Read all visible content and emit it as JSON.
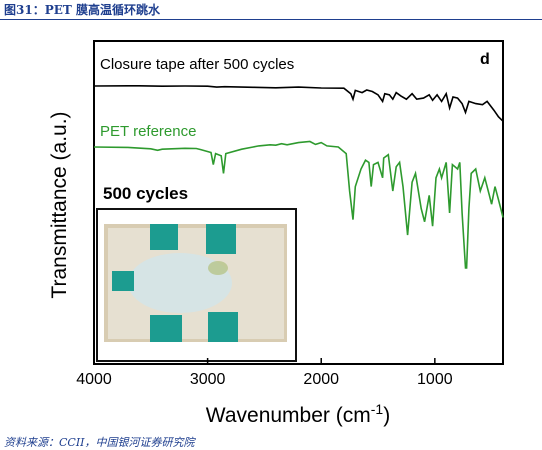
{
  "figure": {
    "title": "图31：PET 膜高温循环跳水",
    "source": "资料来源：CCII，中国银河证券研究院"
  },
  "chart_data": {
    "type": "line",
    "xlabel": "Wavenumber (cm",
    "xlabel_sup": "-1",
    "xlabel_end": ")",
    "ylabel": "Transmittance (a.u.)",
    "panel_label": "d",
    "xlim": [
      4000,
      400
    ],
    "x_reversed": true,
    "xticks": [
      4000,
      3000,
      2000,
      1000
    ],
    "xtick_labels": [
      "4000",
      "3000",
      "2000",
      "1000"
    ],
    "inset_title": "500 cycles",
    "series": [
      {
        "name": "Closure tape after 500 cycles",
        "color": "#000000",
        "points": [
          [
            4000,
            0.0
          ],
          [
            3600,
            -0.1
          ],
          [
            3400,
            0.1
          ],
          [
            3200,
            0.0
          ],
          [
            3000,
            0.1
          ],
          [
            2920,
            0.5
          ],
          [
            2850,
            0.3
          ],
          [
            2600,
            0.6
          ],
          [
            2400,
            0.8
          ],
          [
            2200,
            0.5
          ],
          [
            2000,
            0.9
          ],
          [
            1800,
            1.0
          ],
          [
            1740,
            3.5
          ],
          [
            1720,
            6.0
          ],
          [
            1700,
            2.0
          ],
          [
            1640,
            3.0
          ],
          [
            1600,
            1.8
          ],
          [
            1550,
            2.5
          ],
          [
            1500,
            4.0
          ],
          [
            1460,
            7.0
          ],
          [
            1440,
            3.5
          ],
          [
            1400,
            4.0
          ],
          [
            1370,
            6.0
          ],
          [
            1340,
            3.0
          ],
          [
            1300,
            4.5
          ],
          [
            1250,
            6.0
          ],
          [
            1200,
            3.5
          ],
          [
            1160,
            6.0
          ],
          [
            1100,
            5.5
          ],
          [
            1050,
            4.0
          ],
          [
            1020,
            6.5
          ],
          [
            980,
            4.0
          ],
          [
            940,
            7.0
          ],
          [
            900,
            3.5
          ],
          [
            870,
            10.0
          ],
          [
            840,
            5.0
          ],
          [
            800,
            5.5
          ],
          [
            760,
            8.0
          ],
          [
            730,
            12.0
          ],
          [
            700,
            7.0
          ],
          [
            640,
            8.0
          ],
          [
            580,
            8.5
          ],
          [
            540,
            7.0
          ],
          [
            480,
            11.0
          ],
          [
            440,
            14.0
          ],
          [
            400,
            16.0
          ]
        ]
      },
      {
        "name": "PET reference",
        "color": "#2e9a2e",
        "points": [
          [
            4000,
            0.0
          ],
          [
            3700,
            0.2
          ],
          [
            3500,
            0.8
          ],
          [
            3440,
            1.5
          ],
          [
            3400,
            1.0
          ],
          [
            3200,
            0.6
          ],
          [
            3100,
            0.7
          ],
          [
            3060,
            1.2
          ],
          [
            2970,
            2.5
          ],
          [
            2950,
            8.0
          ],
          [
            2930,
            3.0
          ],
          [
            2880,
            4.0
          ],
          [
            2860,
            12.0
          ],
          [
            2840,
            3.0
          ],
          [
            2700,
            1.0
          ],
          [
            2600,
            0.0
          ],
          [
            2550,
            -0.5
          ],
          [
            2450,
            -1.0
          ],
          [
            2400,
            -0.8
          ],
          [
            2350,
            -1.5
          ],
          [
            2300,
            -1.0
          ],
          [
            2200,
            -2.0
          ],
          [
            2100,
            -2.5
          ],
          [
            2050,
            -1.2
          ],
          [
            2000,
            -2.0
          ],
          [
            1950,
            -0.5
          ],
          [
            1850,
            0.0
          ],
          [
            1780,
            3.0
          ],
          [
            1750,
            20.0
          ],
          [
            1720,
            33.0
          ],
          [
            1700,
            18.0
          ],
          [
            1650,
            10.0
          ],
          [
            1610,
            6.0
          ],
          [
            1580,
            7.0
          ],
          [
            1560,
            18.0
          ],
          [
            1540,
            8.0
          ],
          [
            1500,
            7.0
          ],
          [
            1460,
            14.0
          ],
          [
            1450,
            5.0
          ],
          [
            1410,
            3.5
          ],
          [
            1370,
            20.0
          ],
          [
            1340,
            9.0
          ],
          [
            1310,
            7.0
          ],
          [
            1280,
            18.0
          ],
          [
            1240,
            40.0
          ],
          [
            1200,
            16.0
          ],
          [
            1170,
            12.0
          ],
          [
            1120,
            28.0
          ],
          [
            1090,
            34.0
          ],
          [
            1050,
            22.0
          ],
          [
            1020,
            36.0
          ],
          [
            990,
            14.0
          ],
          [
            960,
            10.0
          ],
          [
            940,
            14.0
          ],
          [
            900,
            7.0
          ],
          [
            870,
            30.0
          ],
          [
            845,
            8.0
          ],
          [
            800,
            10.0
          ],
          [
            780,
            7.0
          ],
          [
            760,
            30.0
          ],
          [
            730,
            55.0
          ],
          [
            720,
            55.0
          ],
          [
            700,
            28.0
          ],
          [
            680,
            12.0
          ],
          [
            640,
            10.0
          ],
          [
            600,
            20.0
          ],
          [
            560,
            14.0
          ],
          [
            520,
            22.0
          ],
          [
            500,
            26.0
          ],
          [
            470,
            18.0
          ],
          [
            440,
            24.0
          ],
          [
            410,
            30.0
          ],
          [
            400,
            32.0
          ]
        ]
      }
    ]
  }
}
